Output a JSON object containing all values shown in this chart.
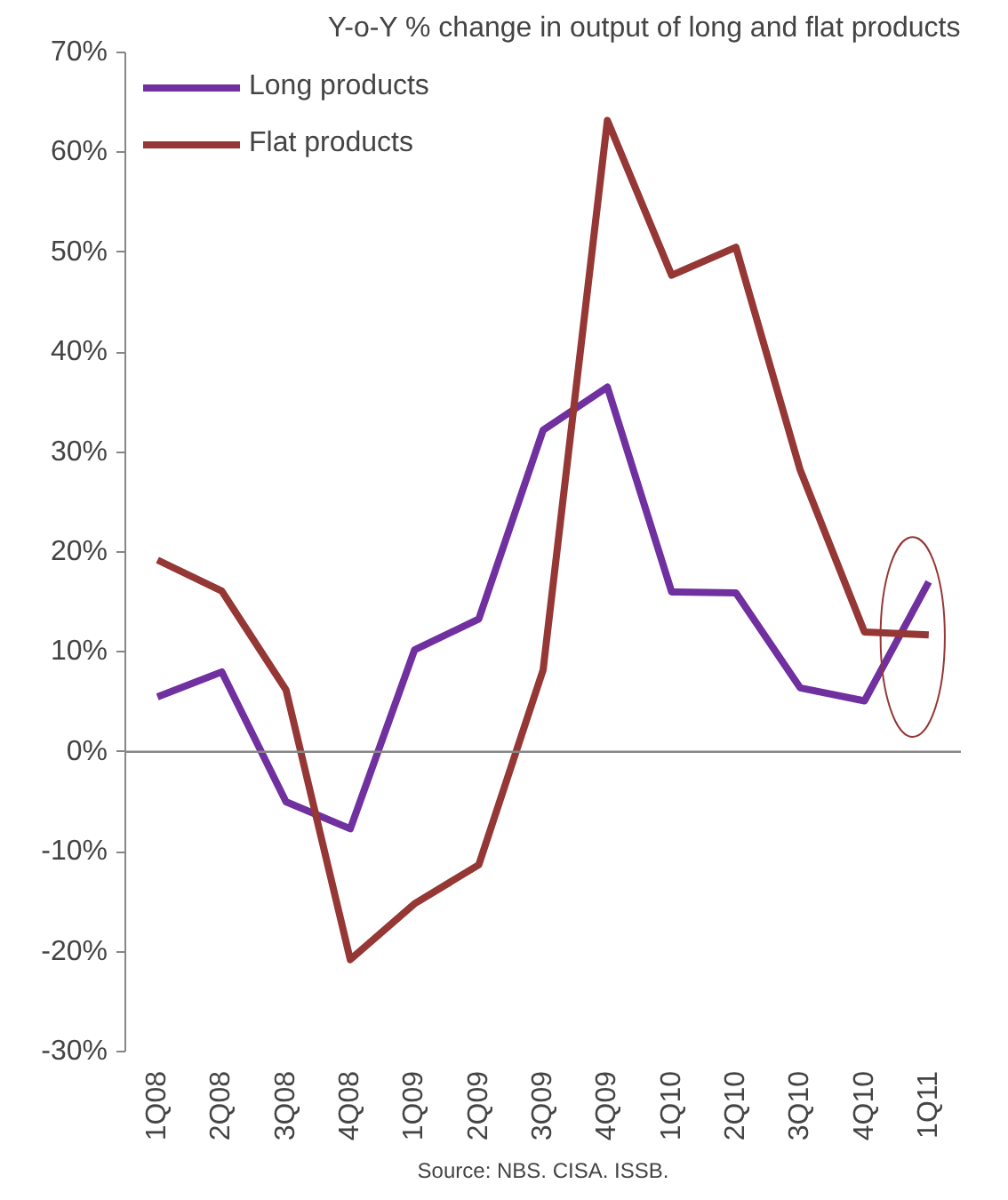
{
  "chart_data": {
    "type": "line",
    "title": "Y-o-Y % change in output of long and flat products",
    "categories": [
      "1Q08",
      "2Q08",
      "3Q08",
      "4Q08",
      "1Q09",
      "2Q09",
      "3Q09",
      "4Q09",
      "1Q10",
      "2Q10",
      "3Q10",
      "4Q10",
      "1Q11"
    ],
    "series": [
      {
        "name": "Long products",
        "color": "#7030a0",
        "values": [
          5.5,
          8,
          -5,
          -7.7,
          10.2,
          13.3,
          32.2,
          36.5,
          16,
          15.9,
          6.4,
          5.1,
          17
        ]
      },
      {
        "name": "Flat products",
        "color": "#953735",
        "values": [
          19.2,
          16.1,
          6.2,
          -20.8,
          -15.2,
          -11.3,
          8.2,
          63.2,
          47.7,
          50.5,
          28.2,
          12,
          11.7
        ]
      }
    ],
    "ylim": [
      -30,
      70
    ],
    "yticks": [
      {
        "value": -30,
        "label": "-30%"
      },
      {
        "value": -20,
        "label": "-20%"
      },
      {
        "value": -10,
        "label": "-10%"
      },
      {
        "value": 0,
        "label": "0%"
      },
      {
        "value": 10,
        "label": "10%"
      },
      {
        "value": 20,
        "label": "20%"
      },
      {
        "value": 30,
        "label": "30%"
      },
      {
        "value": 40,
        "label": "40%"
      },
      {
        "value": 50,
        "label": "50%"
      },
      {
        "value": 60,
        "label": "60%"
      },
      {
        "value": 70,
        "label": "70%"
      }
    ],
    "ref_lines": [
      {
        "axis": "y",
        "value": 0,
        "color": "#868686"
      }
    ],
    "grid": false,
    "legend": "top left",
    "marker": "none",
    "line_style": "solid",
    "annotations": [
      "Source: NBS. CISA. ISSB."
    ]
  }
}
